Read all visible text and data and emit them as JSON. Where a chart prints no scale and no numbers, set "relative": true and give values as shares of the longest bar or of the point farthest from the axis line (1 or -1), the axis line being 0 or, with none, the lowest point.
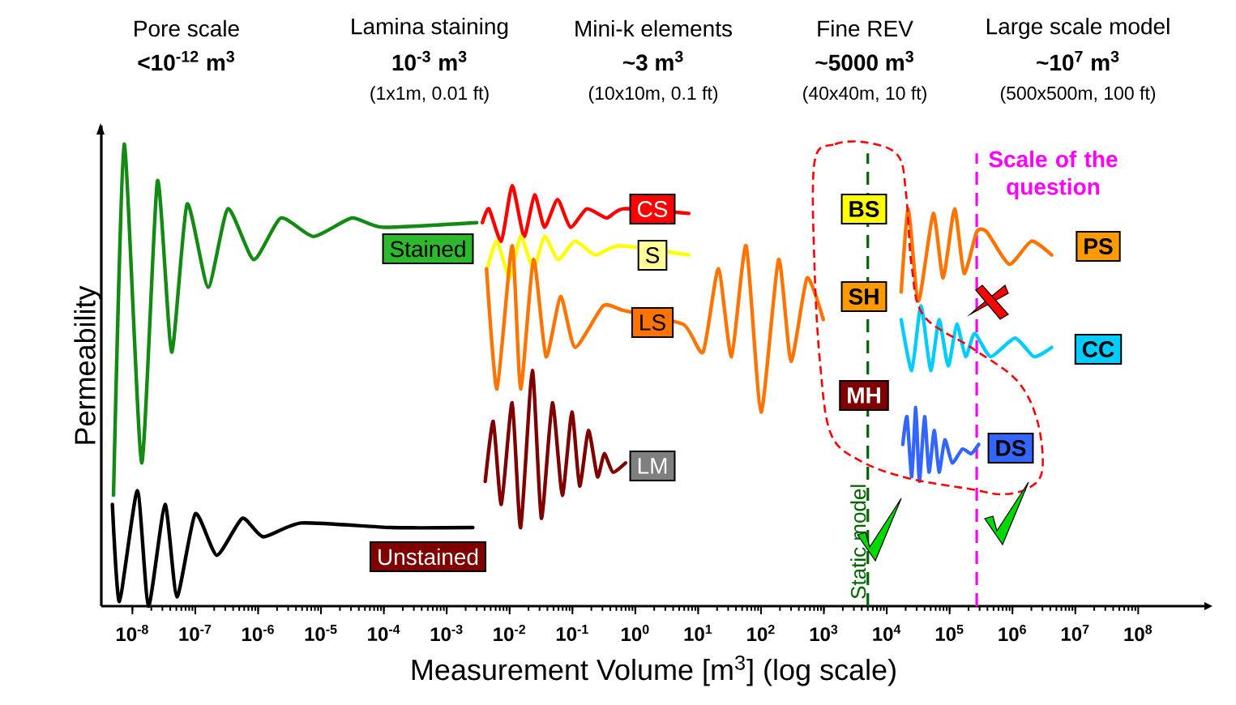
{
  "chart_data": {
    "type": "line",
    "relative": true,
    "log": "x",
    "xlabel": "Measurement  Volume  [m$^{3}$]  (log scale)",
    "ylabel": "Permeability",
    "xlim": [
      3.2e-09,
      1200000000.0
    ],
    "xticks": [
      {
        "value": 1e-08,
        "label": "10$^{-8}$"
      },
      {
        "value": 1e-07,
        "label": "10$^{-7}$"
      },
      {
        "value": 1e-06,
        "label": "10$^{-6}$"
      },
      {
        "value": 1e-05,
        "label": "10$^{-5}$"
      },
      {
        "value": 0.0001,
        "label": "10$^{-4}$"
      },
      {
        "value": 0.001,
        "label": "10$^{-3}$"
      },
      {
        "value": 0.01,
        "label": "10$^{-2}$"
      },
      {
        "value": 0.1,
        "label": "10$^{-1}$"
      },
      {
        "value": 1,
        "label": "10$^{0}$"
      },
      {
        "value": 10,
        "label": "10$^{1}$"
      },
      {
        "value": 100,
        "label": "10$^{2}$"
      },
      {
        "value": 1000,
        "label": "10$^{3}$"
      },
      {
        "value": 10000,
        "label": "10$^{4}$"
      },
      {
        "value": 100000,
        "label": "10$^{5}$"
      },
      {
        "value": 1000000,
        "label": "10$^{6}$"
      },
      {
        "value": 10000000,
        "label": "10$^{7}$"
      },
      {
        "value": 100000000,
        "label": "10$^{8}$"
      }
    ],
    "series": [
      {
        "color": "#138a13",
        "x": [
          5e-09,
          7.4e-09,
          1.4e-08,
          2.5e-08,
          4.2e-08,
          7.4e-08,
          1.6e-07,
          3.3e-07,
          8.5e-07,
          2.3e-06,
          7.6e-06,
          3.1e-05,
          9.5e-05,
          0.003
        ],
        "values": [
          0.24,
          1.0,
          0.31,
          0.92,
          0.55,
          0.87,
          0.69,
          0.86,
          0.75,
          0.84,
          0.8,
          0.84,
          0.82,
          0.83
        ]
      },
      {
        "color": "#000000",
        "x": [
          4.8e-09,
          6.2e-09,
          1.2e-08,
          1.8e-08,
          3.3e-08,
          5.1e-08,
          1e-07,
          2.2e-07,
          5.6e-07,
          1.2e-06,
          4.9e-06,
          0.00013,
          0.0026
        ],
        "values": [
          0.22,
          0.01,
          0.25,
          0.0,
          0.22,
          0.02,
          0.2,
          0.11,
          0.19,
          0.15,
          0.18,
          0.17,
          0.17
        ]
      },
      {
        "color": "#ff0000",
        "x": [
          0.0037,
          0.0047,
          0.0074,
          0.011,
          0.017,
          0.025,
          0.036,
          0.058,
          0.093,
          0.17,
          0.35,
          0.65,
          7.1
        ],
        "values": [
          0.83,
          0.86,
          0.79,
          0.91,
          0.8,
          0.89,
          0.82,
          0.88,
          0.82,
          0.86,
          0.84,
          0.86,
          0.85
        ]
      },
      {
        "color": "#ffff00",
        "x": [
          0.0044,
          0.0063,
          0.01,
          0.015,
          0.024,
          0.036,
          0.059,
          0.11,
          0.23,
          0.56,
          7.1
        ],
        "values": [
          0.73,
          0.79,
          0.71,
          0.8,
          0.73,
          0.8,
          0.75,
          0.79,
          0.76,
          0.78,
          0.76
        ]
      },
      {
        "color": "#ff7300",
        "x": [
          0.0043,
          0.0063,
          0.011,
          0.015,
          0.024,
          0.038,
          0.065,
          0.11,
          0.31,
          0.65,
          5.8,
          12,
          21,
          34,
          58,
          100,
          190,
          300,
          540,
          980
        ],
        "values": [
          0.73,
          0.47,
          0.78,
          0.47,
          0.75,
          0.54,
          0.67,
          0.56,
          0.65,
          0.64,
          0.61,
          0.55,
          0.73,
          0.54,
          0.78,
          0.42,
          0.75,
          0.53,
          0.71,
          0.62
        ]
      },
      {
        "color": "#ff7300",
        "x": [
          17000.0,
          22000.0,
          32000.0,
          55000.0,
          79000.0,
          120000.0,
          170000.0,
          270000.0,
          390000.0,
          890000.0,
          2000000.0,
          4200000.0
        ],
        "values": [
          0.68,
          0.86,
          0.66,
          0.85,
          0.71,
          0.86,
          0.72,
          0.81,
          0.81,
          0.74,
          0.79,
          0.76
        ]
      },
      {
        "color": "#00ccff",
        "x": [
          17000.0,
          25000.0,
          35000.0,
          50000.0,
          68000.0,
          95000.0,
          130000.0,
          180000.0,
          250000.0,
          450000.0,
          1100000.0,
          2200000.0,
          4200000.0
        ],
        "values": [
          0.62,
          0.51,
          0.65,
          0.51,
          0.62,
          0.52,
          0.61,
          0.54,
          0.59,
          0.54,
          0.58,
          0.54,
          0.56
        ]
      },
      {
        "color": "#7f0000",
        "x": [
          0.0041,
          0.0055,
          0.0074,
          0.011,
          0.015,
          0.023,
          0.032,
          0.048,
          0.069,
          0.098,
          0.13,
          0.18,
          0.25,
          0.32,
          0.44,
          0.7
        ],
        "values": [
          0.27,
          0.4,
          0.22,
          0.44,
          0.17,
          0.51,
          0.19,
          0.44,
          0.24,
          0.42,
          0.26,
          0.38,
          0.28,
          0.33,
          0.29,
          0.31
        ]
      },
      {
        "color": "#3366ff",
        "x": [
          18000.0,
          21000.0,
          25000.0,
          29000.0,
          33000.0,
          40000.0,
          47000.0,
          57000.0,
          68000.0,
          84000.0,
          110000.0,
          160000.0,
          220000.0,
          290000.0
        ],
        "values": [
          0.35,
          0.41,
          0.28,
          0.43,
          0.27,
          0.41,
          0.29,
          0.38,
          0.29,
          0.36,
          0.31,
          0.34,
          0.33,
          0.35
        ]
      }
    ],
    "ref_lines": [
      {
        "axis": "x",
        "value": 5000,
        "label": "Static model",
        "color": "#006600",
        "line_style": "dashed"
      },
      {
        "axis": "x",
        "value": 270000.0,
        "label": "Scale of the question",
        "color": "#ff00ff",
        "line_style": "dashed"
      }
    ],
    "annotations": [
      "Pore scale",
      "<10$^{-12}$ m$^{3}$",
      "Lamina staining",
      "10$^{-3}$ m$^{3}$",
      "(1x1m, 0.01 ft)",
      "Mini-k elements",
      "~3 m$^{3}$",
      "(10x10m, 0.1 ft)",
      "Fine REV",
      "~5000 m$^{3}$",
      "(40x40m, 10 ft)",
      "Large scale model",
      "~10$^{7}$ m$^{3}$",
      "(500x500m, 100 ft)",
      "Stained",
      "Unstained",
      "CS",
      "S",
      "LS",
      "LM",
      "BS",
      "SH",
      "MH",
      "PS",
      "CC",
      "DS"
    ]
  }
}
